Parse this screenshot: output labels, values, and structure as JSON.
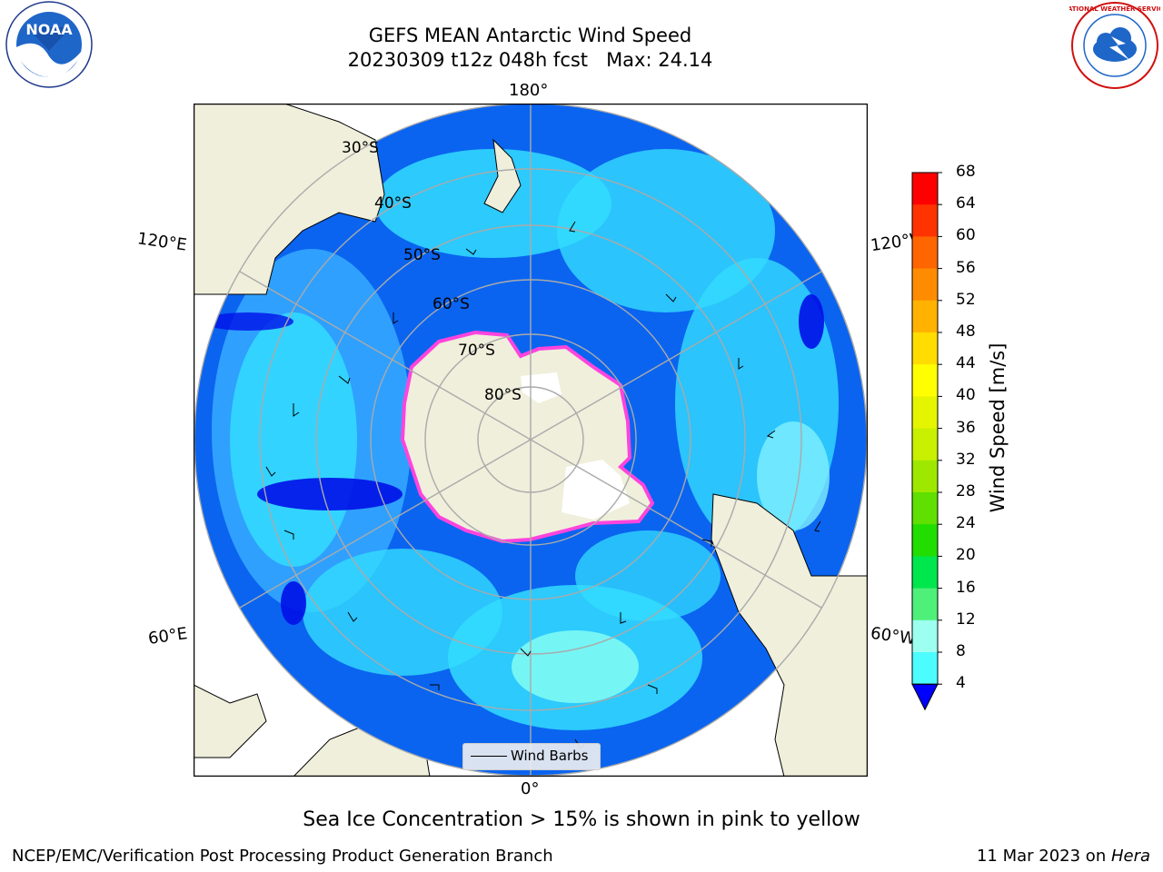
{
  "title_line1": "GEFS MEAN Antarctic Wind Speed",
  "title_line2": "20230309 t12z 048h fcst   Max: 24.14",
  "map": {
    "longitude_labels": [
      "180°",
      "120°E",
      "120°W",
      "60°E",
      "60°W",
      "0°"
    ],
    "latitude_labels": [
      "30°S",
      "40°S",
      "50°S",
      "60°S",
      "70°S",
      "80°S"
    ],
    "legend_label": "Wind Barbs"
  },
  "colorbar": {
    "label": "Wind Speed [m/s]",
    "ticks": [
      "68",
      "64",
      "60",
      "56",
      "52",
      "48",
      "44",
      "40",
      "36",
      "32",
      "28",
      "24",
      "20",
      "16",
      "12",
      "8",
      "4"
    ],
    "colors": [
      "#ff0000",
      "#ff3300",
      "#ff6600",
      "#ff8c00",
      "#ffb300",
      "#ffdd00",
      "#ffff00",
      "#e5f500",
      "#c8f000",
      "#9ee800",
      "#5fe000",
      "#22dd00",
      "#00e64d",
      "#4ef07a",
      "#9cfff0",
      "#4dfcff",
      "#00e8ff",
      "#0066ff",
      "#0000ff"
    ],
    "colors_upper_to_lower_note": ""
  },
  "caption": "Sea Ice Concentration > 15% is shown in pink to yellow",
  "footer_left": "NCEP/EMC/Verification Post Processing Product Generation Branch",
  "footer_right_prefix": "11 Mar 2023 on ",
  "footer_right_italic": "Hera",
  "logos": {
    "noaa": "NOAA",
    "nws": "NATIONAL WEATHER SERVICE"
  }
}
